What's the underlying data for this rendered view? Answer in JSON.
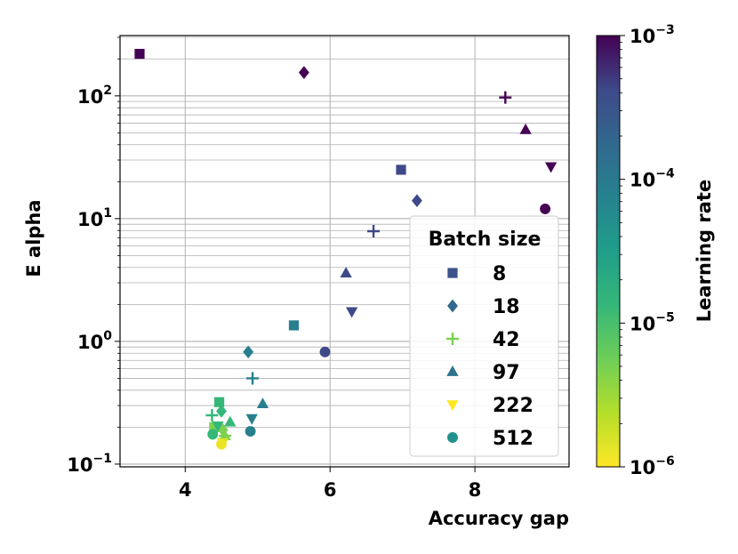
{
  "chart_data": {
    "type": "scatter",
    "title": "",
    "xlabel": "Accuracy gap",
    "ylabel": "E alpha",
    "xlim": [
      3.1,
      9.3
    ],
    "ylim": [
      0.095,
      310
    ],
    "x_scale": "linear",
    "y_scale": "log",
    "grid": true,
    "x_ticks": [
      {
        "value": 4,
        "label": "4"
      },
      {
        "value": 6,
        "label": "6"
      },
      {
        "value": 8,
        "label": "8"
      }
    ],
    "y_ticks": [
      {
        "value": 0.1,
        "base": "10",
        "exp": "−1"
      },
      {
        "value": 1,
        "base": "10",
        "exp": "0"
      },
      {
        "value": 10,
        "base": "10",
        "exp": "1"
      },
      {
        "value": 100,
        "base": "10",
        "exp": "2"
      }
    ],
    "colorbar": {
      "label": "Learning rate",
      "scale": "log",
      "range": [
        1e-06,
        0.001
      ],
      "colormap": "viridis",
      "ticks": [
        {
          "value": 1e-06,
          "base": "10",
          "exp": "−6"
        },
        {
          "value": 1e-05,
          "base": "10",
          "exp": "−5"
        },
        {
          "value": 0.0001,
          "base": "10",
          "exp": "−4"
        },
        {
          "value": 0.001,
          "base": "10",
          "exp": "−3"
        }
      ]
    },
    "legend": {
      "title": "Batch size",
      "placement": "lower-right",
      "entries": [
        {
          "label": "8",
          "marker": "square",
          "color": "#3b528b"
        },
        {
          "label": "18",
          "marker": "diamond",
          "color": "#31688e"
        },
        {
          "label": "42",
          "marker": "plus",
          "color": "#7ad151"
        },
        {
          "label": "97",
          "marker": "triangle-up",
          "color": "#2c728e"
        },
        {
          "label": "222",
          "marker": "triangle-down",
          "color": "#fde725"
        },
        {
          "label": "512",
          "marker": "circle",
          "color": "#21918c"
        }
      ]
    },
    "series": [
      {
        "batch": "8",
        "marker": "square",
        "points": [
          {
            "x": 3.37,
            "y": 220,
            "lr": 0.001
          },
          {
            "x": 6.98,
            "y": 25,
            "lr": 0.00022
          },
          {
            "x": 5.5,
            "y": 1.35,
            "lr": 5e-05
          },
          {
            "x": 4.47,
            "y": 0.32,
            "lr": 1e-05
          },
          {
            "x": 4.4,
            "y": 0.2,
            "lr": 4e-06
          }
        ]
      },
      {
        "batch": "18",
        "marker": "diamond",
        "points": [
          {
            "x": 5.64,
            "y": 155,
            "lr": 0.001
          },
          {
            "x": 7.2,
            "y": 14,
            "lr": 0.00022
          },
          {
            "x": 4.87,
            "y": 0.82,
            "lr": 5e-05
          },
          {
            "x": 4.5,
            "y": 0.27,
            "lr": 1e-05
          },
          {
            "x": 4.52,
            "y": 0.19,
            "lr": 4e-06
          }
        ]
      },
      {
        "batch": "42",
        "marker": "plus",
        "points": [
          {
            "x": 8.42,
            "y": 97,
            "lr": 0.001
          },
          {
            "x": 6.6,
            "y": 7.9,
            "lr": 0.00022
          },
          {
            "x": 4.93,
            "y": 0.5,
            "lr": 5e-05
          },
          {
            "x": 4.37,
            "y": 0.25,
            "lr": 1e-05
          },
          {
            "x": 4.55,
            "y": 0.17,
            "lr": 4e-06
          }
        ]
      },
      {
        "batch": "97",
        "marker": "triangle-up",
        "points": [
          {
            "x": 8.7,
            "y": 53,
            "lr": 0.001
          },
          {
            "x": 6.22,
            "y": 3.6,
            "lr": 0.00022
          },
          {
            "x": 5.07,
            "y": 0.31,
            "lr": 5e-05
          },
          {
            "x": 4.62,
            "y": 0.22,
            "lr": 1e-05
          },
          {
            "x": 4.55,
            "y": 0.17,
            "lr": 4e-06
          }
        ]
      },
      {
        "batch": "222",
        "marker": "triangle-down",
        "points": [
          {
            "x": 9.05,
            "y": 26.5,
            "lr": 0.001
          },
          {
            "x": 6.3,
            "y": 1.75,
            "lr": 0.00022
          },
          {
            "x": 4.92,
            "y": 0.235,
            "lr": 5e-05
          },
          {
            "x": 4.45,
            "y": 0.205,
            "lr": 1e-05
          },
          {
            "x": 4.52,
            "y": 0.15,
            "lr": 1.5e-06
          }
        ]
      },
      {
        "batch": "512",
        "marker": "circle",
        "points": [
          {
            "x": 8.97,
            "y": 12,
            "lr": 0.001
          },
          {
            "x": 5.93,
            "y": 0.82,
            "lr": 0.00022
          },
          {
            "x": 4.9,
            "y": 0.185,
            "lr": 5e-05
          },
          {
            "x": 4.38,
            "y": 0.175,
            "lr": 1e-05
          },
          {
            "x": 4.5,
            "y": 0.145,
            "lr": 1.2e-06
          }
        ]
      }
    ]
  }
}
